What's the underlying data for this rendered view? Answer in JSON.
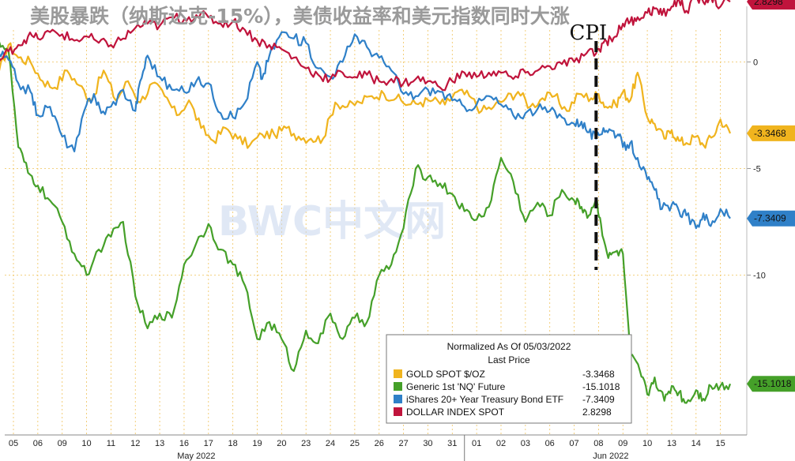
{
  "chart_data": {
    "type": "line",
    "title": "美股暴跌（纳斯达克-15%），美债收益率和美元指数同时大涨",
    "annotation": "CPI",
    "watermark": "BWC中文网",
    "legend": {
      "header": "Normalized As Of 05/03/2022",
      "subheader": "Last Price",
      "placement": "bottom-right"
    },
    "x_ticks": [
      "05",
      "06",
      "09",
      "10",
      "11",
      "12",
      "13",
      "16",
      "17",
      "18",
      "19",
      "20",
      "23",
      "24",
      "25",
      "26",
      "27",
      "30",
      "31",
      "01",
      "02",
      "03",
      "06",
      "07",
      "08",
      "09",
      "10",
      "13",
      "14",
      "15"
    ],
    "x_month_labels": [
      {
        "label": "May 2022",
        "tick_index": 7.5
      },
      {
        "label": "Jun 2022",
        "tick_index": 24.5
      }
    ],
    "annotation_tick_index": 23.9,
    "y_ticks": [
      0,
      -5,
      -10
    ],
    "ylim": [
      -17.5,
      1.5
    ],
    "series": [
      {
        "name": "GOLD SPOT $/OZ",
        "last": -3.3468,
        "last_label": "-3.3468",
        "color": "#f0b41e",
        "x": [
          -0.6,
          -0.2,
          0.2,
          0.7,
          1.2,
          1.7,
          2.2,
          2.7,
          3.2,
          3.7,
          4.2,
          4.7,
          5.2,
          5.7,
          6.2,
          6.7,
          7.2,
          7.7,
          8.2,
          8.7,
          9.2,
          9.7,
          10.2,
          10.7,
          11.2,
          11.7,
          12.2,
          12.7,
          13.2,
          13.7,
          14.2,
          14.7,
          15.2,
          15.7,
          16.2,
          16.7,
          17.2,
          17.7,
          18.2,
          18.7,
          19.2,
          19.7,
          20.2,
          20.7,
          21.2,
          21.7,
          22.2,
          22.7,
          23.2,
          23.7,
          24.0,
          24.3,
          24.7,
          25.0,
          25.3,
          25.6,
          26.0,
          26.3,
          26.7,
          27.0,
          27.3,
          27.6,
          28.0,
          28.3,
          28.7,
          29.0,
          29.4
        ],
        "values": [
          -0.5,
          0.8,
          0.2,
          0.0,
          -0.9,
          -1.2,
          -0.4,
          -1.1,
          -1.8,
          -0.4,
          -1.8,
          -0.9,
          -1.9,
          -1.0,
          -1.6,
          -2.5,
          -1.8,
          -3.1,
          -3.7,
          -3.1,
          -3.6,
          -3.9,
          -3.4,
          -3.4,
          -3.1,
          -3.5,
          -3.6,
          -3.6,
          -1.9,
          -2.1,
          -1.9,
          -1.6,
          -1.5,
          -1.7,
          -2.0,
          -1.9,
          -1.8,
          -2.0,
          -1.4,
          -1.6,
          -2.3,
          -2.1,
          -1.7,
          -1.4,
          -2.1,
          -1.7,
          -1.6,
          -2.3,
          -1.5,
          -1.7,
          -1.5,
          -2.1,
          -2.0,
          -1.4,
          -1.8,
          -0.5,
          -2.6,
          -2.9,
          -3.6,
          -3.2,
          -3.7,
          -3.8,
          -3.5,
          -3.9,
          -3.5,
          -2.7,
          -3.35
        ]
      },
      {
        "name": "Generic 1st 'NQ' Future",
        "last": -15.1018,
        "last_label": "-15.1018",
        "color": "#45a029",
        "x": [
          -0.6,
          -0.2,
          0.2,
          0.6,
          1.0,
          1.5,
          2.0,
          2.5,
          3.0,
          3.5,
          4.0,
          4.5,
          5.0,
          5.5,
          6.0,
          6.5,
          7.0,
          7.5,
          8.0,
          8.5,
          9.0,
          9.5,
          10.0,
          10.5,
          11.0,
          11.5,
          12.0,
          12.5,
          13.0,
          13.5,
          14.0,
          14.5,
          15.0,
          15.5,
          16.0,
          16.5,
          17.0,
          17.5,
          18.0,
          18.5,
          19.0,
          19.5,
          20.0,
          20.5,
          21.0,
          21.5,
          22.0,
          22.5,
          23.0,
          23.3,
          23.6,
          23.9,
          24.1,
          24.4,
          24.7,
          25.0,
          25.3,
          25.7,
          26.0,
          26.3,
          26.7,
          27.0,
          27.3,
          27.6,
          28.0,
          28.3,
          28.6,
          29.0,
          29.4
        ],
        "values": [
          1.0,
          0.5,
          -4.0,
          -5.2,
          -5.8,
          -6.5,
          -7.5,
          -9.0,
          -10.0,
          -8.8,
          -8.2,
          -7.5,
          -11.0,
          -12.5,
          -11.8,
          -12.0,
          -9.5,
          -8.5,
          -7.6,
          -8.8,
          -9.5,
          -10.5,
          -13.0,
          -12.2,
          -13.0,
          -14.5,
          -12.6,
          -13.2,
          -11.8,
          -13.0,
          -12.0,
          -12.2,
          -10.0,
          -9.5,
          -7.8,
          -5.0,
          -5.4,
          -5.7,
          -6.2,
          -7.0,
          -7.4,
          -6.8,
          -4.5,
          -5.6,
          -7.5,
          -6.6,
          -7.2,
          -6.0,
          -6.5,
          -6.8,
          -7.2,
          -6.4,
          -7.6,
          -9.2,
          -8.9,
          -9.0,
          -13.8,
          -14.5,
          -15.6,
          -14.8,
          -15.9,
          -15.2,
          -15.5,
          -16.0,
          -15.4,
          -15.8,
          -15.2,
          -15.2,
          -15.1
        ]
      },
      {
        "name": "iShares 20+ Year Treasury Bond ETF",
        "last": -7.3409,
        "last_label": "-7.3409",
        "color": "#2f80c8",
        "x": [
          -0.6,
          -0.2,
          0.2,
          0.7,
          1.0,
          1.5,
          2.0,
          2.5,
          3.0,
          3.3,
          3.6,
          4.0,
          4.5,
          5.0,
          5.2,
          5.5,
          6.0,
          6.5,
          7.0,
          7.5,
          8.0,
          8.5,
          9.0,
          9.5,
          10.0,
          10.2,
          10.5,
          11.0,
          11.5,
          12.0,
          12.5,
          13.0,
          13.5,
          14.0,
          14.5,
          15.0,
          15.5,
          16.0,
          16.5,
          17.0,
          17.5,
          18.0,
          18.5,
          19.0,
          19.5,
          20.0,
          20.5,
          21.0,
          21.5,
          22.0,
          22.5,
          23.0,
          23.3,
          23.6,
          23.9,
          24.2,
          24.5,
          24.8,
          25.0,
          25.3,
          25.6,
          26.0,
          26.3,
          26.6,
          27.0,
          27.3,
          27.6,
          28.0,
          28.3,
          28.6,
          29.0,
          29.4
        ],
        "values": [
          0.4,
          0.1,
          -1.0,
          -1.4,
          -2.5,
          -2.1,
          -3.5,
          -4.2,
          -2.0,
          -1.5,
          -2.4,
          -2.1,
          -1.3,
          -2.3,
          -0.9,
          0.3,
          -0.7,
          -1.3,
          -1.4,
          -0.9,
          -1.0,
          -2.4,
          -2.6,
          -1.9,
          0.0,
          -0.8,
          0.3,
          1.4,
          1.1,
          0.9,
          -0.3,
          -0.7,
          0.0,
          1.3,
          0.7,
          0.2,
          -0.4,
          -1.5,
          -1.6,
          -1.3,
          -1.4,
          -1.8,
          -2.1,
          -2.0,
          -1.6,
          -2.0,
          -2.5,
          -2.4,
          -2.2,
          -2.3,
          -2.6,
          -2.9,
          -2.8,
          -3.3,
          -3.6,
          -3.1,
          -3.2,
          -3.4,
          -4.0,
          -3.8,
          -4.5,
          -5.5,
          -6.0,
          -6.9,
          -6.7,
          -7.0,
          -7.2,
          -7.8,
          -7.1,
          -7.7,
          -6.9,
          -7.34
        ]
      },
      {
        "name": "DOLLAR INDEX SPOT",
        "last": 2.8298,
        "last_label": "2.8298",
        "color": "#c0143c",
        "x": [
          -0.6,
          -0.2,
          0.2,
          0.6,
          1.0,
          1.5,
          2.0,
          2.5,
          3.0,
          3.5,
          4.0,
          4.5,
          5.0,
          5.5,
          6.0,
          6.5,
          7.0,
          7.5,
          8.0,
          8.5,
          9.0,
          9.5,
          10.0,
          10.5,
          11.0,
          11.5,
          12.0,
          12.5,
          13.0,
          13.5,
          14.0,
          14.5,
          15.0,
          15.5,
          16.0,
          16.5,
          17.0,
          17.5,
          18.0,
          18.5,
          19.0,
          19.5,
          20.0,
          20.5,
          21.0,
          21.5,
          22.0,
          22.5,
          23.0,
          23.5,
          23.9,
          24.2,
          24.5,
          24.8,
          25.0,
          25.3,
          25.6,
          26.0,
          26.3,
          26.6,
          27.0,
          27.3,
          27.6,
          28.0,
          28.3,
          28.6,
          29.0,
          29.4
        ],
        "values": [
          0.0,
          0.5,
          0.8,
          1.2,
          1.1,
          1.4,
          1.3,
          1.0,
          1.2,
          0.9,
          0.8,
          1.1,
          1.6,
          1.8,
          1.7,
          2.1,
          2.0,
          2.2,
          2.1,
          1.8,
          1.9,
          1.5,
          1.0,
          0.8,
          0.6,
          0.2,
          -0.3,
          -0.6,
          -0.8,
          -0.5,
          -0.7,
          -0.6,
          -0.9,
          -0.8,
          -1.0,
          -0.8,
          -0.9,
          -1.2,
          -0.9,
          -0.5,
          -0.7,
          -0.5,
          -0.5,
          -0.8,
          -0.5,
          -0.4,
          -0.2,
          -0.1,
          0.0,
          0.4,
          0.4,
          0.9,
          1.1,
          1.4,
          1.8,
          1.9,
          2.1,
          2.3,
          2.5,
          2.2,
          2.6,
          2.9,
          2.4,
          3.0,
          2.8,
          3.1,
          2.6,
          2.83
        ]
      }
    ]
  }
}
